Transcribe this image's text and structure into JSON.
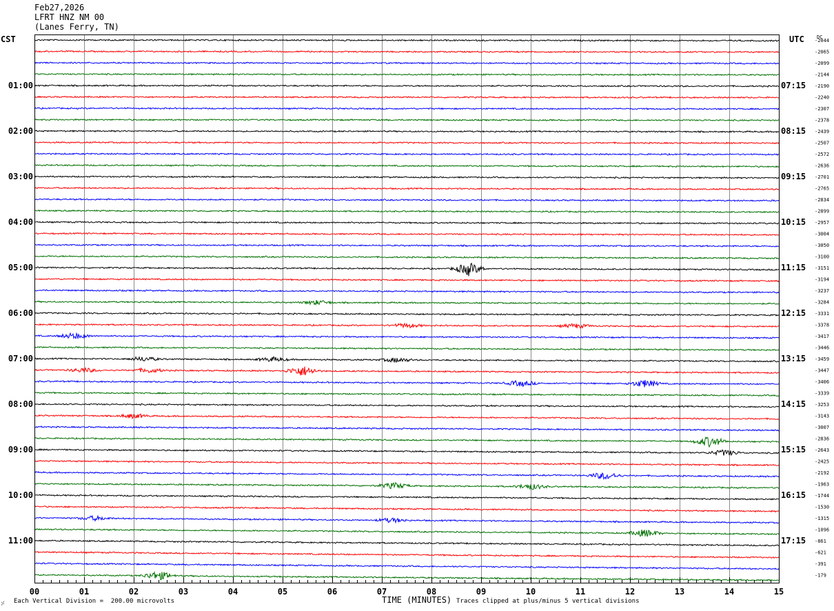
{
  "header": {
    "date": "Feb27,2026",
    "station": "LFRT HNZ NM 00",
    "location": "(Lanes Ferry, TN)"
  },
  "left_timezone": "CST",
  "right_timezone": "UTC",
  "dc_label": "DC",
  "footer": {
    "scale_note": "Each Vertical Division =  200.00 microvolts",
    "xlabel": "TIME (MINUTES)",
    "clip_note": "Traces clipped at plus/minus 5 vertical divisions"
  },
  "chart_data": {
    "type": "line",
    "title": "LFRT HNZ NM 00 (Lanes Ferry, TN) Feb27,2026",
    "xlabel": "TIME (MINUTES)",
    "xlim": [
      0,
      15
    ],
    "x_ticks": [
      "00",
      "01",
      "02",
      "03",
      "04",
      "05",
      "06",
      "07",
      "08",
      "09",
      "10",
      "11",
      "12",
      "13",
      "14",
      "15"
    ],
    "grid": true,
    "trace_colors": [
      "#000000",
      "#ff0000",
      "#0000ff",
      "#007000"
    ],
    "traces_per_hour": 4,
    "left_hour_labels": [
      "01:00",
      "02:00",
      "03:00",
      "04:00",
      "05:00",
      "06:00",
      "07:00",
      "08:00",
      "09:00",
      "10:00",
      "11:00"
    ],
    "right_hour_labels": [
      "07:15",
      "08:15",
      "09:15",
      "10:15",
      "11:15",
      "12:15",
      "13:15",
      "14:15",
      "15:15",
      "16:15",
      "17:15"
    ],
    "dc_offsets": [
      "-2044",
      "-2065",
      "-2099",
      "-2144",
      "-2190",
      "-2240",
      "-2307",
      "-2378",
      "-2439",
      "-2507",
      "-2572",
      "-2636",
      "-2701",
      "-2765",
      "-2834",
      "-2899",
      "-2957",
      "-3004",
      "-3050",
      "-3100",
      "-3151",
      "-3194",
      "-3237",
      "-3284",
      "-3331",
      "-3378",
      "-3417",
      "-3446",
      "-3459",
      "-3447",
      "-3406",
      "-3339",
      "-3253",
      "-3143",
      "-3007",
      "-2836",
      "-2643",
      "-2425",
      "-2192",
      "-1963",
      "-1744",
      "-1530",
      "-1315",
      "-1096",
      "-861",
      "-621",
      "-391",
      "-179"
    ],
    "trace_count": 48,
    "drift_per_trace": [
      1,
      1,
      1,
      1,
      1,
      1,
      1,
      1,
      1,
      1,
      1,
      2,
      2,
      2,
      2,
      2,
      2,
      2,
      2,
      3,
      3,
      3,
      3,
      3,
      3,
      3,
      3,
      4,
      4,
      4,
      4,
      4,
      4,
      5,
      5,
      5,
      5,
      6,
      6,
      6,
      6,
      7,
      7,
      7,
      7,
      8,
      8,
      8
    ],
    "events": [
      {
        "trace": 20,
        "minute": 8.75,
        "amp": 8
      },
      {
        "trace": 23,
        "minute": 5.7,
        "amp": 3
      },
      {
        "trace": 25,
        "minute": 7.5,
        "amp": 3
      },
      {
        "trace": 25,
        "minute": 10.9,
        "amp": 3
      },
      {
        "trace": 26,
        "minute": 0.8,
        "amp": 4
      },
      {
        "trace": 28,
        "minute": 2.2,
        "amp": 3
      },
      {
        "trace": 28,
        "minute": 4.8,
        "amp": 3
      },
      {
        "trace": 28,
        "minute": 7.3,
        "amp": 3
      },
      {
        "trace": 29,
        "minute": 1.0,
        "amp": 3
      },
      {
        "trace": 29,
        "minute": 2.3,
        "amp": 3
      },
      {
        "trace": 29,
        "minute": 5.4,
        "amp": 7
      },
      {
        "trace": 30,
        "minute": 9.8,
        "amp": 4
      },
      {
        "trace": 30,
        "minute": 12.3,
        "amp": 5
      },
      {
        "trace": 33,
        "minute": 2.0,
        "amp": 3
      },
      {
        "trace": 35,
        "minute": 13.6,
        "amp": 7
      },
      {
        "trace": 36,
        "minute": 13.9,
        "amp": 4
      },
      {
        "trace": 38,
        "minute": 11.5,
        "amp": 5
      },
      {
        "trace": 39,
        "minute": 7.25,
        "amp": 4
      },
      {
        "trace": 39,
        "minute": 10.0,
        "amp": 4
      },
      {
        "trace": 42,
        "minute": 1.2,
        "amp": 3
      },
      {
        "trace": 42,
        "minute": 7.2,
        "amp": 3
      },
      {
        "trace": 43,
        "minute": 12.3,
        "amp": 5
      },
      {
        "trace": 47,
        "minute": 2.5,
        "amp": 6
      }
    ]
  }
}
